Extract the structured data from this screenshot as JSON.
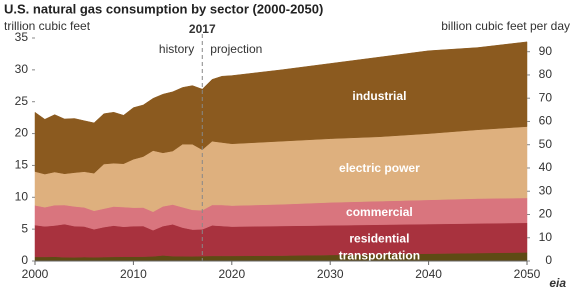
{
  "chart_data": {
    "type": "stacked-area",
    "title": "U.S. natural gas consumption by sector (2000-2050)",
    "y_axis_label": "trillion cubic feet",
    "y2_axis_label": "billion cubic feet per day",
    "x": [
      2000,
      2001,
      2002,
      2003,
      2004,
      2005,
      2006,
      2007,
      2008,
      2009,
      2010,
      2011,
      2012,
      2013,
      2014,
      2015,
      2016,
      2017,
      2018,
      2019,
      2020,
      2025,
      2030,
      2035,
      2040,
      2045,
      2050
    ],
    "series": [
      {
        "name": "transportation",
        "color": "#5e4b14",
        "values": [
          0.64,
          0.64,
          0.67,
          0.59,
          0.57,
          0.62,
          0.58,
          0.62,
          0.65,
          0.67,
          0.67,
          0.69,
          0.73,
          0.88,
          0.76,
          0.74,
          0.73,
          0.77,
          0.8,
          0.8,
          0.8,
          0.85,
          0.95,
          1.05,
          1.15,
          1.25,
          1.35
        ]
      },
      {
        "name": "residential",
        "color": "#a8323e",
        "values": [
          5.0,
          4.8,
          4.9,
          5.2,
          4.9,
          4.8,
          4.4,
          4.7,
          4.9,
          4.7,
          4.8,
          4.8,
          4.1,
          4.6,
          5.0,
          4.5,
          4.2,
          4.2,
          4.8,
          4.7,
          4.6,
          4.65,
          4.65,
          4.65,
          4.65,
          4.65,
          4.65
        ]
      },
      {
        "name": "commercial",
        "color": "#d9757e",
        "values": [
          3.1,
          3.0,
          3.2,
          3.0,
          3.1,
          3.0,
          2.9,
          2.9,
          3.0,
          3.1,
          2.9,
          2.9,
          2.9,
          3.1,
          3.1,
          3.2,
          3.1,
          3.0,
          3.2,
          3.3,
          3.3,
          3.4,
          3.6,
          3.7,
          3.8,
          3.9,
          3.9
        ]
      },
      {
        "name": "electric power",
        "color": "#deb07e",
        "values": [
          5.3,
          5.2,
          5.2,
          4.9,
          5.3,
          5.6,
          5.9,
          7.0,
          6.8,
          6.8,
          7.6,
          8.0,
          9.6,
          8.4,
          8.4,
          9.9,
          10.3,
          9.5,
          10.0,
          9.8,
          9.7,
          9.9,
          10.0,
          10.1,
          10.4,
          10.8,
          11.2
        ]
      },
      {
        "name": "industrial",
        "color": "#8b5a1f",
        "values": [
          9.3,
          8.6,
          9.0,
          8.6,
          8.5,
          8.0,
          7.9,
          7.9,
          8.0,
          7.6,
          8.1,
          8.1,
          8.2,
          9.2,
          9.3,
          8.9,
          9.2,
          9.5,
          9.7,
          10.4,
          10.7,
          11.2,
          11.8,
          12.5,
          13.0,
          12.9,
          13.3
        ]
      }
    ],
    "xlim": [
      2000,
      2050
    ],
    "xticks": [
      2000,
      2010,
      2020,
      2030,
      2040,
      2050
    ],
    "ylim": [
      0,
      35
    ],
    "yticks": [
      0,
      5,
      10,
      15,
      20,
      25,
      30,
      35
    ],
    "y2lim": [
      0,
      95.89
    ],
    "y2ticks": [
      0,
      10,
      20,
      30,
      40,
      50,
      60,
      70,
      80,
      90
    ],
    "grid": false,
    "divider": 2017,
    "history_label": "history",
    "projection_label": "projection",
    "source_logo": "eia"
  }
}
